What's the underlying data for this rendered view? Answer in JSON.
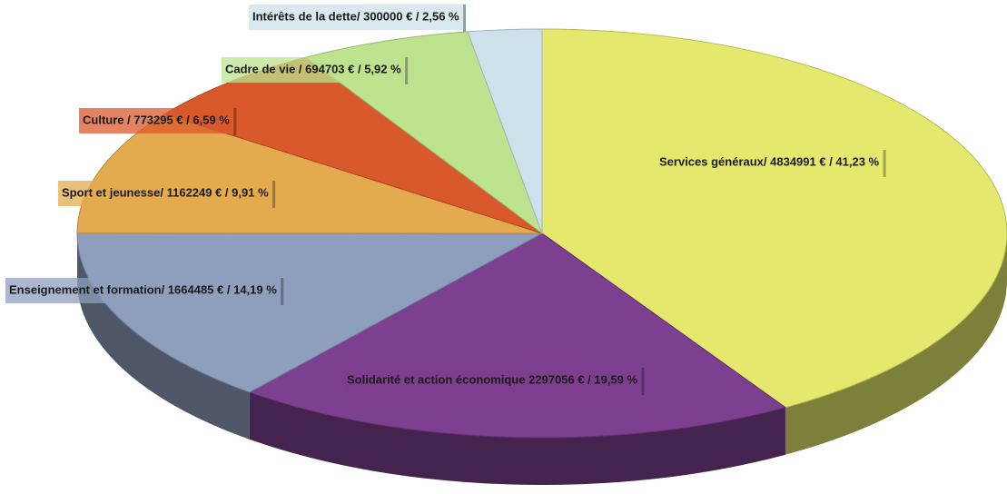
{
  "chart_data": {
    "type": "pie3d",
    "value_labels": [
      "Services généraux/ 4834991 € / 41,23 %",
      "Solidarité et action économique 2297056 € / 19,59 %",
      "Enseignement et formation/ 1664485 € / 14,19 %",
      "Sport et jeunesse/ 1162249 € / 9,91 %",
      "Culture / 773295 € / 6,59 %",
      "Cadre de vie / 694703 € / 5,92 %",
      "Intérêts de la dette/ 300000 € / 2,56 %"
    ],
    "values": [
      41.23,
      19.59,
      14.19,
      9.91,
      6.59,
      5.92,
      2.56
    ],
    "colors": [
      "#e4e86c",
      "#7d3f8f",
      "#8d9fbd",
      "#e3ab4e",
      "#d9592c",
      "#bde38e",
      "#cde1ea"
    ]
  }
}
